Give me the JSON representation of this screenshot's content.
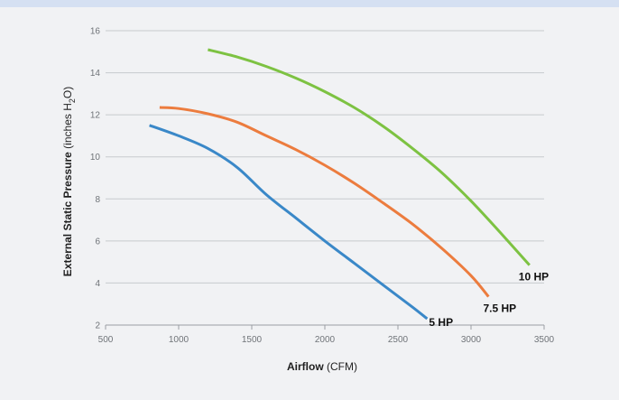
{
  "chart_data": {
    "type": "line",
    "title": "",
    "xlabel": "Airflow",
    "xlabel_unit": "(CFM)",
    "ylabel": "External Static Pressure",
    "ylabel_unit_parts": [
      "(inches H",
      "2",
      "O)"
    ],
    "xlim": [
      500,
      3500
    ],
    "ylim": [
      2,
      16
    ],
    "x_ticks": [
      500,
      1000,
      1500,
      2000,
      2500,
      3000,
      3500
    ],
    "y_ticks": [
      2,
      4,
      6,
      8,
      10,
      12,
      14,
      16
    ],
    "grid": "horizontal",
    "legend": "none",
    "series": [
      {
        "name": "5 HP",
        "color": "#3a88c8",
        "points": [
          [
            800,
            11.5
          ],
          [
            1000,
            11.0
          ],
          [
            1200,
            10.4
          ],
          [
            1400,
            9.5
          ],
          [
            1600,
            8.2
          ],
          [
            1800,
            7.1
          ],
          [
            2000,
            6.0
          ],
          [
            2200,
            4.95
          ],
          [
            2400,
            3.9
          ],
          [
            2600,
            2.85
          ],
          [
            2700,
            2.3
          ]
        ]
      },
      {
        "name": "7.5 HP",
        "color": "#ec7c3e",
        "points": [
          [
            870,
            12.35
          ],
          [
            1000,
            12.3
          ],
          [
            1200,
            12.05
          ],
          [
            1400,
            11.65
          ],
          [
            1600,
            11.0
          ],
          [
            1800,
            10.35
          ],
          [
            2000,
            9.6
          ],
          [
            2200,
            8.75
          ],
          [
            2400,
            7.8
          ],
          [
            2600,
            6.8
          ],
          [
            2800,
            5.65
          ],
          [
            3000,
            4.35
          ],
          [
            3120,
            3.35
          ]
        ]
      },
      {
        "name": "10 HP",
        "color": "#7dc242",
        "points": [
          [
            1200,
            15.1
          ],
          [
            1400,
            14.75
          ],
          [
            1600,
            14.3
          ],
          [
            1800,
            13.75
          ],
          [
            2000,
            13.1
          ],
          [
            2200,
            12.35
          ],
          [
            2400,
            11.45
          ],
          [
            2600,
            10.4
          ],
          [
            2800,
            9.25
          ],
          [
            3000,
            7.9
          ],
          [
            3200,
            6.4
          ],
          [
            3400,
            4.85
          ]
        ]
      }
    ]
  }
}
